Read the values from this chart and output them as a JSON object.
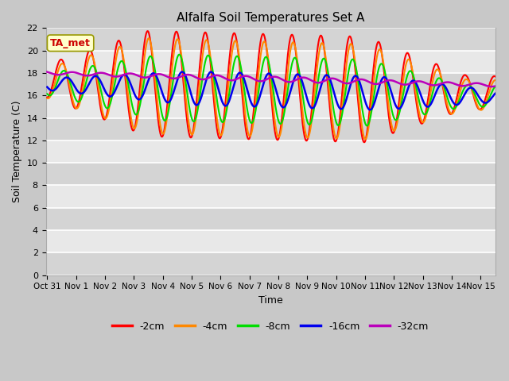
{
  "title": "Alfalfa Soil Temperatures Set A",
  "xlabel": "Time",
  "ylabel": "Soil Temperature (C)",
  "ylim": [
    0,
    22
  ],
  "xlim_days": [
    -0.05,
    15.5
  ],
  "series_labels": [
    "-2cm",
    "-4cm",
    "-8cm",
    "-16cm",
    "-32cm"
  ],
  "series_colors": [
    "#ff0000",
    "#ff8800",
    "#00dd00",
    "#0000ee",
    "#bb00bb"
  ],
  "series_linewidths": [
    1.5,
    1.5,
    1.5,
    1.8,
    1.8
  ],
  "xtick_positions": [
    0,
    1,
    2,
    3,
    4,
    5,
    6,
    7,
    8,
    9,
    10,
    11,
    12,
    13,
    14,
    15
  ],
  "xtick_labels": [
    "Oct 31",
    "Nov 1",
    "Nov 2",
    "Nov 3",
    "Nov 4",
    "Nov 5",
    "Nov 6",
    "Nov 7",
    "Nov 8",
    "Nov 9",
    "Nov 10",
    "Nov 11",
    "Nov 12",
    "Nov 13",
    "Nov 14",
    "Nov 15"
  ],
  "ytick_positions": [
    0,
    2,
    4,
    6,
    8,
    10,
    12,
    14,
    16,
    18,
    20,
    22
  ],
  "annotation_text": "TA_met",
  "annotation_color": "#cc0000",
  "annotation_bg": "#ffffcc",
  "bg_color": "#e0e0e0",
  "grid_color": "#ffffff",
  "legend_ncol": 5,
  "fig_facecolor": "#c8c8c8"
}
